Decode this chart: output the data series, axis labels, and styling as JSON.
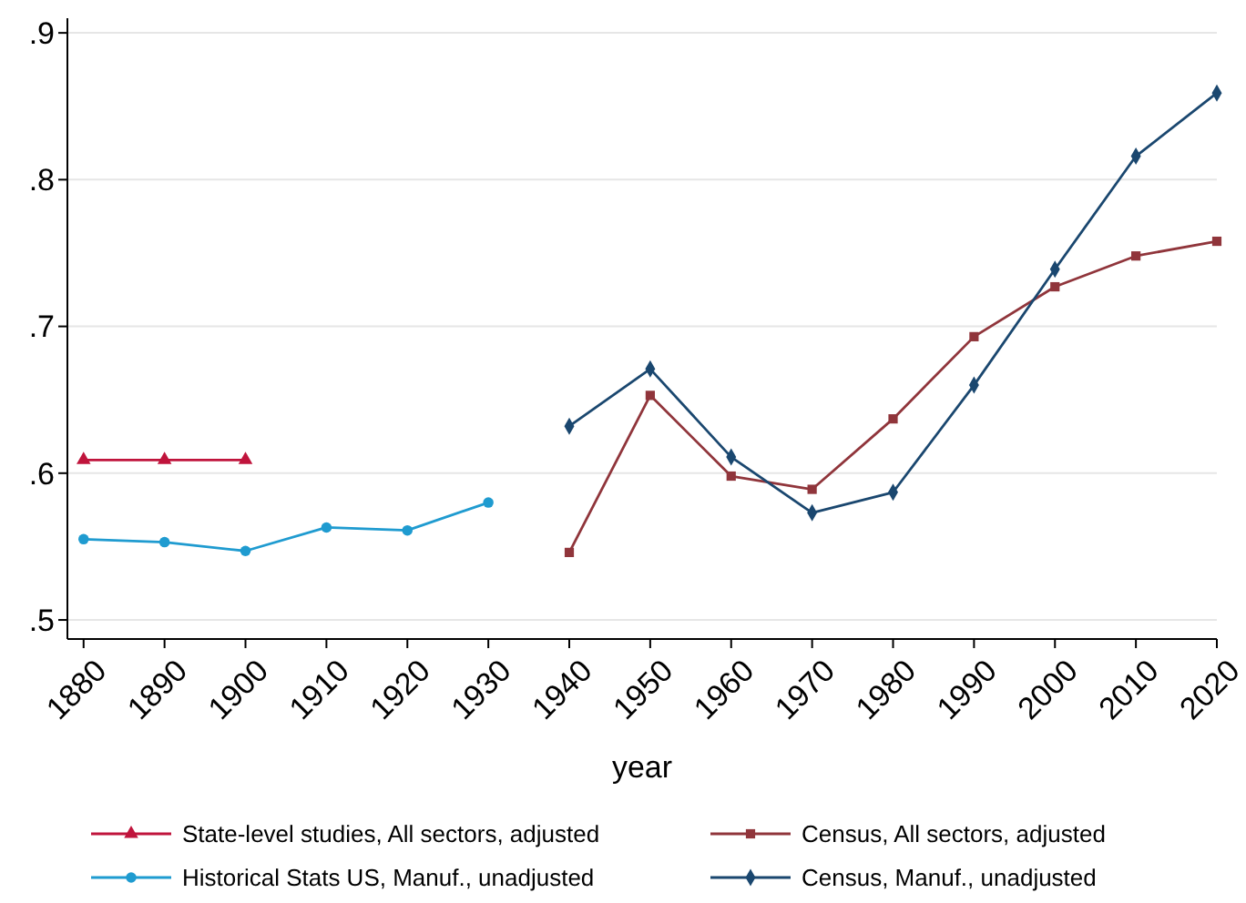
{
  "chart_data": {
    "type": "line",
    "xlabel": "year",
    "xlim": [
      1878,
      2020
    ],
    "xticks": [
      1880,
      1890,
      1900,
      1910,
      1920,
      1930,
      1940,
      1950,
      1960,
      1970,
      1980,
      1990,
      2000,
      2010,
      2020
    ],
    "ylim": [
      0.487,
      0.91
    ],
    "yticks": [
      {
        "value": 0.5,
        "label": ".5"
      },
      {
        "value": 0.6,
        "label": ".6"
      },
      {
        "value": 0.7,
        "label": ".7"
      },
      {
        "value": 0.8,
        "label": ".8"
      },
      {
        "value": 0.9,
        "label": ".9"
      }
    ],
    "grid": "y",
    "legend": "bottom",
    "line_style": "solid",
    "series": [
      {
        "name": "State-level studies, All sectors, adjusted",
        "color": "#c0143c",
        "marker": "triangle",
        "x": [
          1880,
          1890,
          1900
        ],
        "values": [
          0.609,
          0.609,
          0.609
        ]
      },
      {
        "name": "Census, All sectors, adjusted",
        "color": "#90353b",
        "marker": "square",
        "x": [
          1940,
          1950,
          1960,
          1970,
          1980,
          1990,
          2000,
          2010,
          2020
        ],
        "values": [
          0.546,
          0.653,
          0.598,
          0.589,
          0.637,
          0.693,
          0.727,
          0.748,
          0.758
        ]
      },
      {
        "name": "Historical Stats US, Manuf., unadjusted",
        "color": "#1f9bd0",
        "marker": "circle",
        "x": [
          1880,
          1890,
          1900,
          1910,
          1920,
          1930
        ],
        "values": [
          0.555,
          0.553,
          0.547,
          0.563,
          0.561,
          0.58
        ]
      },
      {
        "name": "Census, Manuf., unadjusted",
        "color": "#1a476f",
        "marker": "diamond",
        "x": [
          1940,
          1950,
          1960,
          1970,
          1980,
          1990,
          2000,
          2010,
          2020
        ],
        "values": [
          0.632,
          0.671,
          0.611,
          0.573,
          0.587,
          0.66,
          0.739,
          0.816,
          0.859
        ]
      }
    ]
  }
}
